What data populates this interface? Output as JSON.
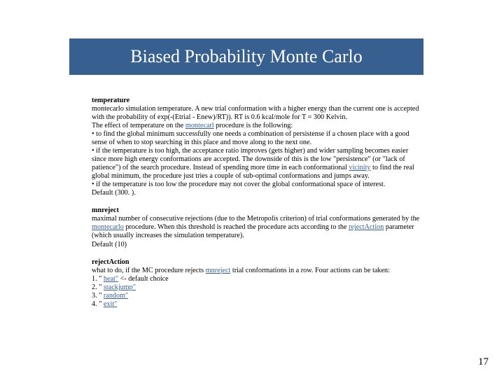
{
  "title": "Biased Probability Monte Carlo",
  "sections": {
    "temperature": {
      "heading": "temperature",
      "l1a": "montecarlo simulation temperature. A new trial conformation with a higher energy than the current one is accepted",
      "l1b": "with the probability of exp(-(Etrial - Enew)/RT)). RT is 0.6 kcal/mole for T = 300 Kelvin.",
      "l2a": "The effect of temperature on the ",
      "link1": "montecarl",
      "l2b": " procedure is the following:",
      "b1a": "• to find the global minimum successfully one needs a combination of persistense if a chosen place with a good",
      "b1b": "sense of when to stop searching in this place and move along to the next one.",
      "b2a": "• if the temperature is too high, the acceptance ratio improves (gets higher) and wider sampling becomes easier",
      "b2b": "since more high energy conformations are accepted. The downside of this is the low \"persistence\" (or \"lack of",
      "b2c": "patience\") of the search procedure. Instead of spending more time in each conformational ",
      "link2": "vicinity",
      "b2d": " to find the real",
      "b2e": "global minimum, the procedure just tries a couple of sub-optimal conformations and jumps away.",
      "b3": "• if the temperature is too low the procedure may not cover the global conformational space of interest.",
      "def": "Default (300. )."
    },
    "mnreject": {
      "heading": "mnreject",
      "l1": "maximal number of consecutive rejections (due to the Metropolis criterion) of trial conformations generated by the ",
      "link1": "montecarlo",
      "l2": " procedure. When this threshold is reached the procedure acts according to the ",
      "link2": "rejectAction",
      "l3": " parameter",
      "l4": "(which usually increases the simulation temperature).",
      "def": "Default (10)"
    },
    "rejectAction": {
      "heading": "rejectAction",
      "l1a": "what to do, if the MC procedure rejects ",
      "link1": "mnreject",
      "l1b": " trial conformations in a row. Four actions can be taken:",
      "i1p": "1. \" ",
      "i1l": "heat\"",
      "i1s": " <- default choice",
      "i2p": "2. \" ",
      "i2l": "stackjump\"",
      "i3p": "3. \" ",
      "i3l": "random\"",
      "i4p": "4. \" ",
      "i4l": "exit\""
    }
  },
  "pageNumber": "17"
}
